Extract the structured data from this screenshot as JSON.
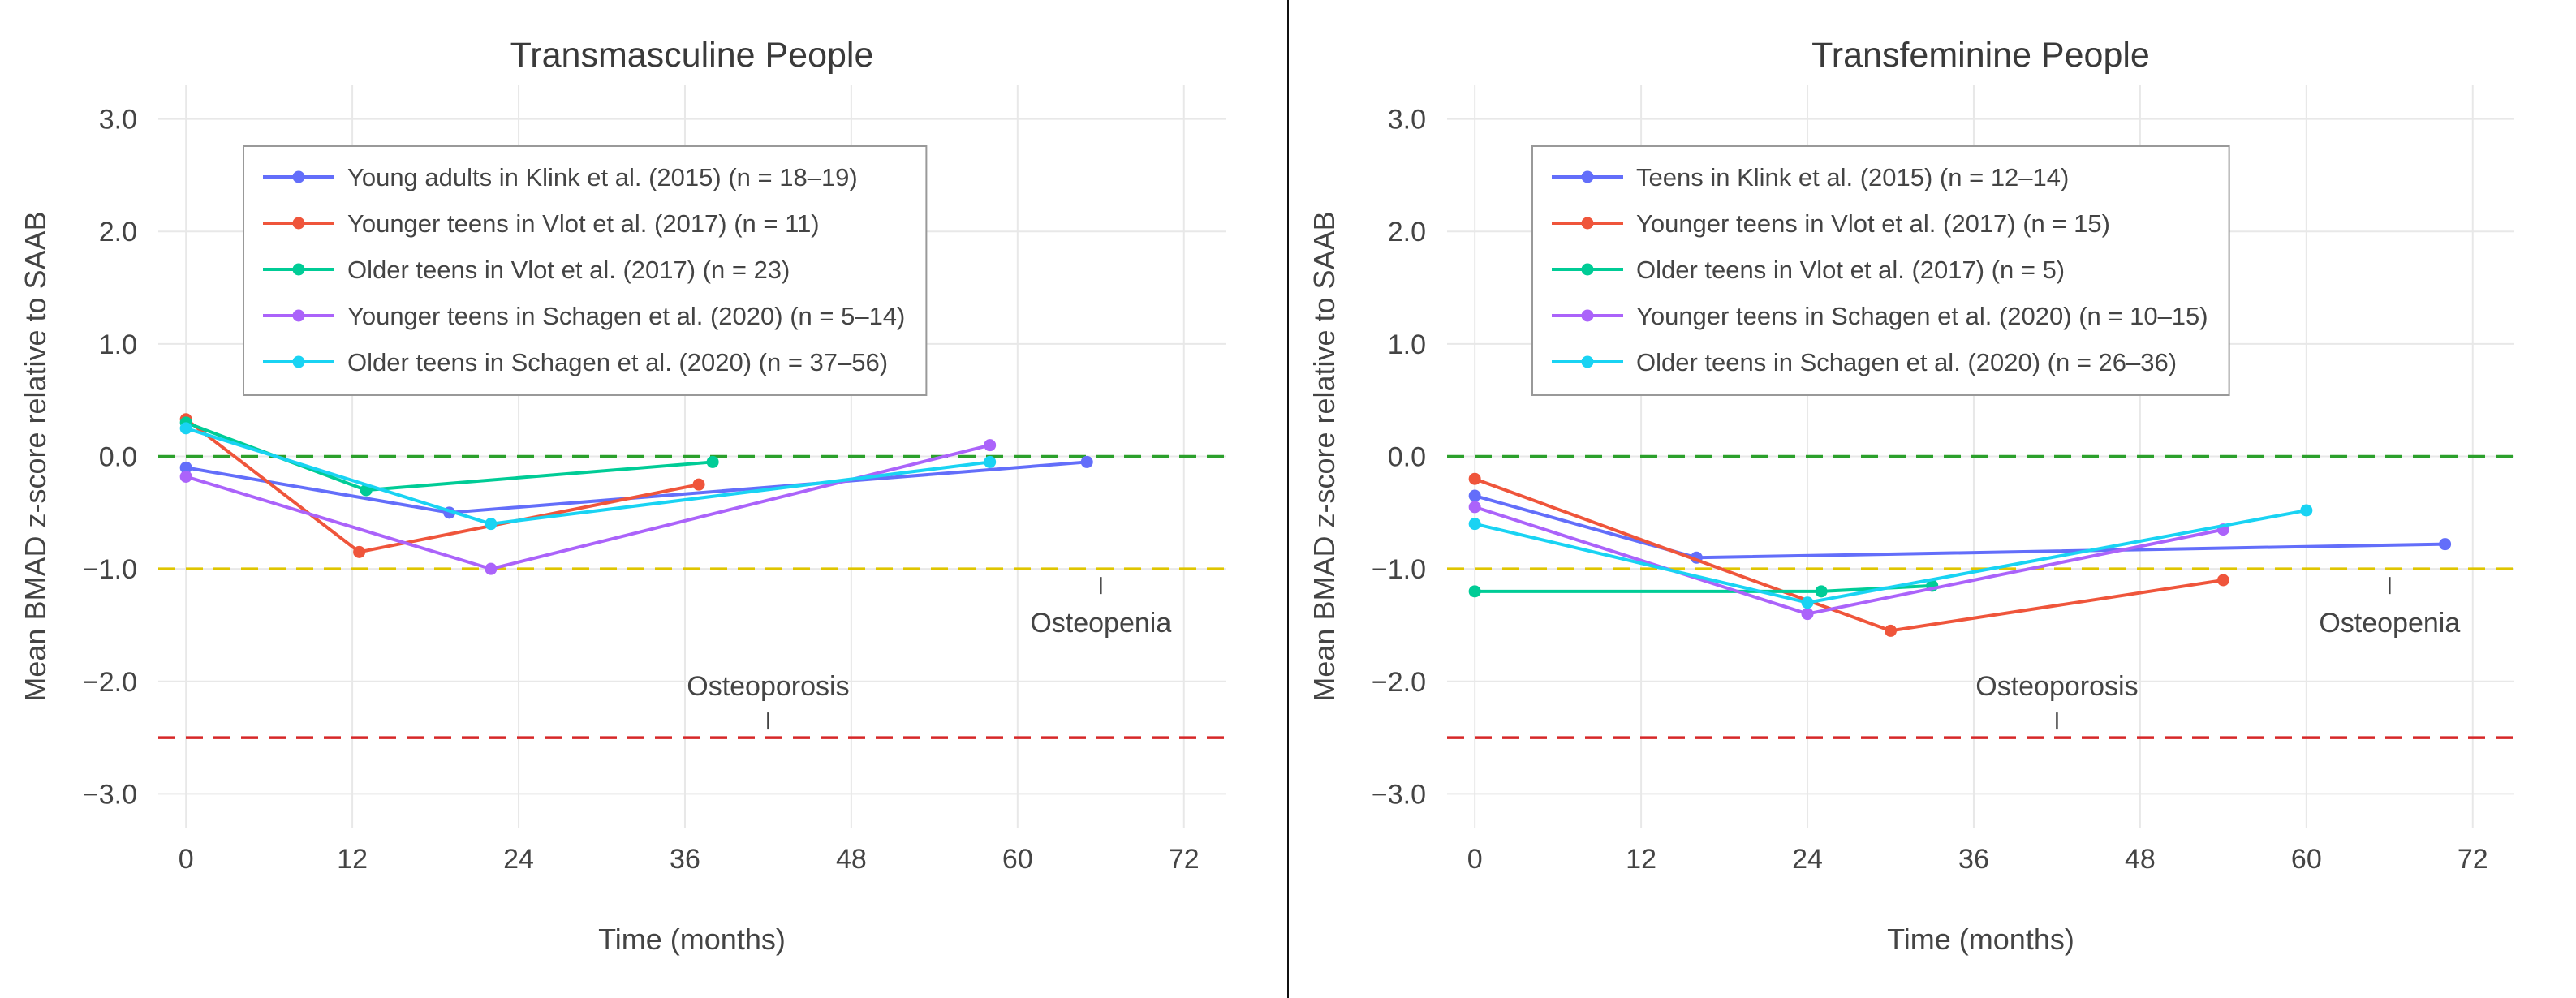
{
  "figure": {
    "background_color": "#ffffff",
    "divider_color": "#111111",
    "text_color": "#444444",
    "title_color": "#3a3a3a",
    "grid_color": "#e8e8e8",
    "legend_border_color": "#999999",
    "legend_background": "#ffffff",
    "xlim": [
      -2,
      75
    ],
    "ylim": [
      -3.3,
      3.3
    ]
  },
  "chart_data": [
    {
      "type": "line",
      "title": "Transmasculine People",
      "xlabel": "Time (months)",
      "ylabel": "Mean BMAD z-score relative to SAAB",
      "xlim": [
        -2,
        75
      ],
      "ylim": [
        -3.3,
        3.3
      ],
      "grid": true,
      "legend_position": "top-left",
      "x_ticks": [
        0,
        12,
        24,
        36,
        48,
        60,
        72
      ],
      "x_tick_labels": [
        "0",
        "12",
        "24",
        "36",
        "48",
        "60",
        "72"
      ],
      "y_ticks": [
        3,
        2,
        1,
        0,
        -1,
        -2,
        -3
      ],
      "y_tick_labels": [
        "3.0",
        "2.0",
        "1.0",
        "0.0",
        "−1.0",
        "−2.0",
        "−3.0"
      ],
      "series": [
        {
          "name": "Young adults in Klink et al. (2015) (n = 18–19)",
          "color": "#636EFA",
          "points": [
            [
              0,
              -0.1
            ],
            [
              19,
              -0.5
            ],
            [
              65,
              -0.05
            ]
          ]
        },
        {
          "name": "Younger teens in Vlot et al. (2017) (n = 11)",
          "color": "#EF553B",
          "points": [
            [
              0,
              0.33
            ],
            [
              12.5,
              -0.85
            ],
            [
              37,
              -0.25
            ]
          ]
        },
        {
          "name": "Older teens in Vlot et al. (2017) (n = 23)",
          "color": "#00CC96",
          "points": [
            [
              0,
              0.3
            ],
            [
              13,
              -0.3
            ],
            [
              38,
              -0.05
            ]
          ]
        },
        {
          "name": "Younger teens in Schagen et al. (2020) (n = 5–14)",
          "color": "#AB63FA",
          "points": [
            [
              0,
              -0.18
            ],
            [
              22,
              -1.0
            ],
            [
              58,
              0.1
            ]
          ]
        },
        {
          "name": "Older teens in Schagen et al. (2020) (n = 37–56)",
          "color": "#19D3F3",
          "points": [
            [
              0,
              0.25
            ],
            [
              22,
              -0.6
            ],
            [
              58,
              -0.05
            ]
          ]
        }
      ],
      "reference_lines": [
        {
          "y": 0,
          "color": "#2CA02C",
          "style": "dashed"
        },
        {
          "y": -1,
          "color": "#DFC500",
          "style": "dashed"
        },
        {
          "y": -2.5,
          "color": "#D62728",
          "style": "dashed"
        }
      ],
      "annotations": [
        {
          "text": "Osteopenia",
          "x": 66,
          "y": -1,
          "side": "below"
        },
        {
          "text": "Osteoporosis",
          "x": 42,
          "y": -2.5,
          "side": "above"
        }
      ]
    },
    {
      "type": "line",
      "title": "Transfeminine People",
      "xlabel": "Time (months)",
      "ylabel": "Mean BMAD z-score relative to SAAB",
      "xlim": [
        -2,
        75
      ],
      "ylim": [
        -3.3,
        3.3
      ],
      "grid": true,
      "legend_position": "top-left",
      "x_ticks": [
        0,
        12,
        24,
        36,
        48,
        60,
        72
      ],
      "x_tick_labels": [
        "0",
        "12",
        "24",
        "36",
        "48",
        "60",
        "72"
      ],
      "y_ticks": [
        3,
        2,
        1,
        0,
        -1,
        -2,
        -3
      ],
      "y_tick_labels": [
        "3.0",
        "2.0",
        "1.0",
        "0.0",
        "−1.0",
        "−2.0",
        "−3.0"
      ],
      "series": [
        {
          "name": "Teens in Klink et al. (2015) (n = 12–14)",
          "color": "#636EFA",
          "points": [
            [
              0,
              -0.35
            ],
            [
              16,
              -0.9
            ],
            [
              70,
              -0.78
            ]
          ]
        },
        {
          "name": "Younger teens in Vlot et al. (2017) (n = 15)",
          "color": "#EF553B",
          "points": [
            [
              0,
              -0.2
            ],
            [
              30,
              -1.55
            ],
            [
              54,
              -1.1
            ]
          ]
        },
        {
          "name": "Older teens in Vlot et al. (2017) (n = 5)",
          "color": "#00CC96",
          "points": [
            [
              0,
              -1.2
            ],
            [
              25,
              -1.2
            ],
            [
              33,
              -1.15
            ]
          ]
        },
        {
          "name": "Younger teens in Schagen et al. (2020) (n = 10–15)",
          "color": "#AB63FA",
          "points": [
            [
              0,
              -0.45
            ],
            [
              24,
              -1.4
            ],
            [
              54,
              -0.65
            ]
          ]
        },
        {
          "name": "Older teens in Schagen et al. (2020) (n = 26–36)",
          "color": "#19D3F3",
          "points": [
            [
              0,
              -0.6
            ],
            [
              24,
              -1.3
            ],
            [
              60,
              -0.48
            ]
          ]
        }
      ],
      "reference_lines": [
        {
          "y": 0,
          "color": "#2CA02C",
          "style": "dashed"
        },
        {
          "y": -1,
          "color": "#DFC500",
          "style": "dashed"
        },
        {
          "y": -2.5,
          "color": "#D62728",
          "style": "dashed"
        }
      ],
      "annotations": [
        {
          "text": "Osteopenia",
          "x": 66,
          "y": -1,
          "side": "below"
        },
        {
          "text": "Osteoporosis",
          "x": 42,
          "y": -2.5,
          "side": "above"
        }
      ]
    }
  ]
}
